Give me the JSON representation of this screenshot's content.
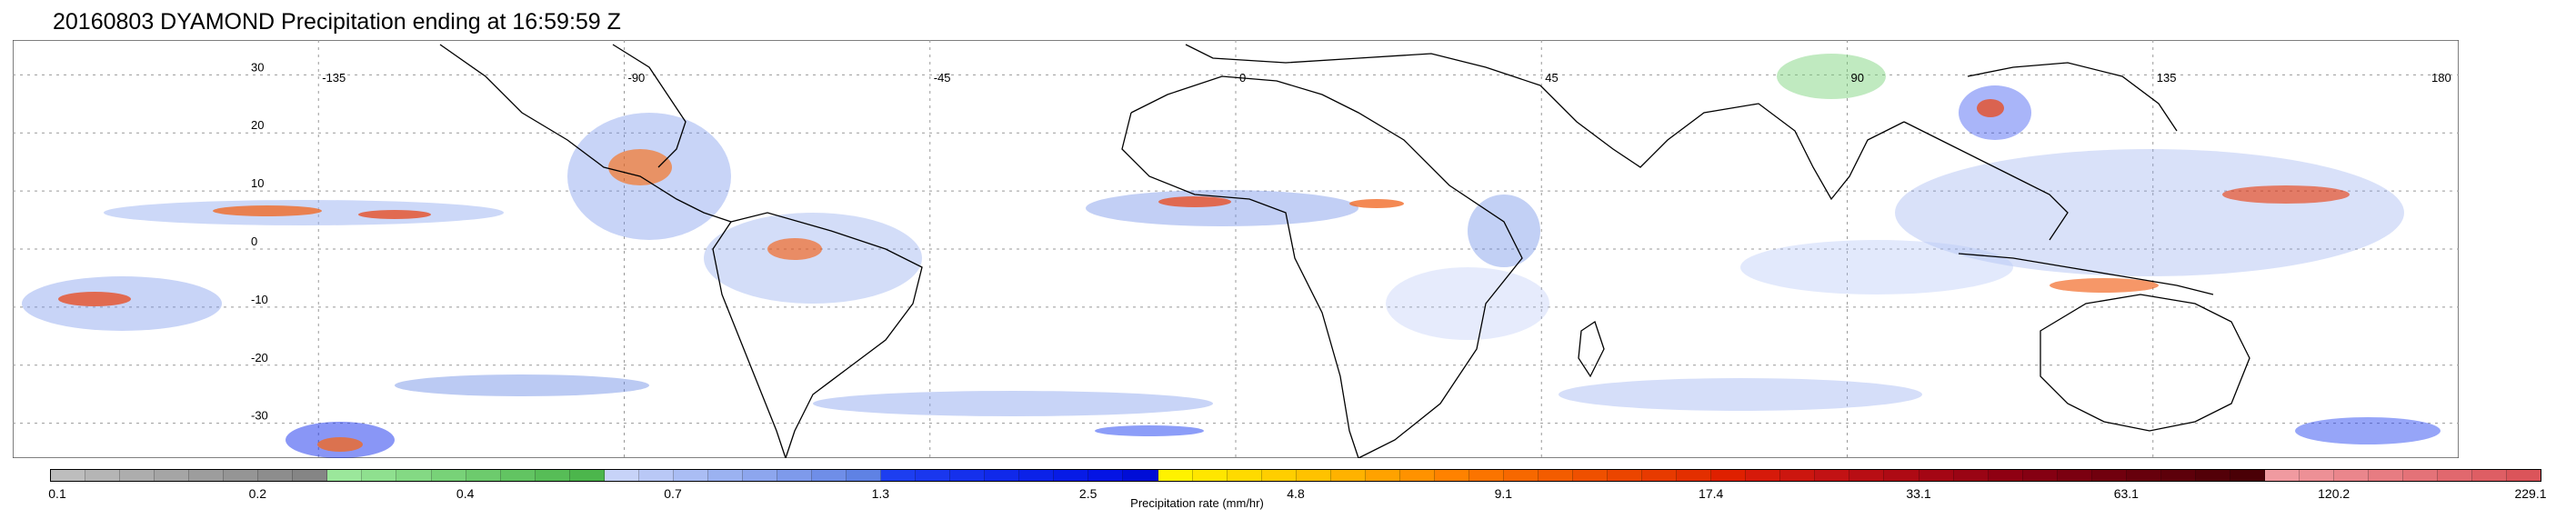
{
  "title": "20160803 DYAMOND Precipitation ending at 16:59:59 Z",
  "map": {
    "lon_labels": [
      "-135",
      "-90",
      "-45",
      "0",
      "45",
      "90",
      "135",
      "180"
    ],
    "lat_labels": [
      "30",
      "20",
      "10",
      "0",
      "-10",
      "-20",
      "-30"
    ],
    "lon_values": [
      -135,
      -90,
      -45,
      0,
      45,
      90,
      135,
      180
    ],
    "lat_values": [
      30,
      20,
      10,
      0,
      -10,
      -20,
      -30
    ],
    "lon_range": [
      -180,
      180
    ],
    "lat_range": [
      -36,
      36
    ],
    "grid": "dotted"
  },
  "colorbar": {
    "label": "Precipitation rate (mm/hr)",
    "tick_labels": [
      "0.1",
      "0.2",
      "0.4",
      "0.7",
      "1.3",
      "2.5",
      "4.8",
      "9.1",
      "17.4",
      "33.1",
      "63.1",
      "120.2",
      "229.1"
    ],
    "tick_values": [
      0.1,
      0.2,
      0.4,
      0.7,
      1.3,
      2.5,
      4.8,
      9.1,
      17.4,
      33.1,
      63.1,
      120.2,
      229.1
    ],
    "colors": [
      "#bdbdbd",
      "#b5b5b5",
      "#adadad",
      "#a5a5a5",
      "#9d9d9d",
      "#959595",
      "#8d8d8d",
      "#858585",
      "#9be79b",
      "#8fe08f",
      "#84d984",
      "#78d278",
      "#6dcb6d",
      "#62c462",
      "#57bd57",
      "#4cb64c",
      "#c7d3f8",
      "#b9c8f6",
      "#aabdf4",
      "#9bb2f1",
      "#8da6ee",
      "#7e9aeb",
      "#6f8ee8",
      "#5f82e4",
      "#1d3ef0",
      "#1a37ee",
      "#1530ec",
      "#1029ea",
      "#0b22e8",
      "#071be6",
      "#0414e4",
      "#000dd7",
      "#fff200",
      "#ffe600",
      "#ffda00",
      "#ffce00",
      "#ffc200",
      "#ffb200",
      "#ffa200",
      "#ff9200",
      "#ff8200",
      "#fb7400",
      "#f76800",
      "#f35c00",
      "#ef5000",
      "#eb4500",
      "#e73a00",
      "#e32f00",
      "#df2000",
      "#d61a0a",
      "#cc160f",
      "#c21214",
      "#b80e14",
      "#ae0a14",
      "#a40614",
      "#9a0414",
      "#8f0012",
      "#850012",
      "#7b0010",
      "#71000e",
      "#67000c",
      "#5d000a",
      "#530008",
      "#4a0006",
      "#f09aa0",
      "#ed9096",
      "#ea868c",
      "#e77c82",
      "#e47278",
      "#e1686e",
      "#de5e64",
      "#db545a"
    ]
  }
}
